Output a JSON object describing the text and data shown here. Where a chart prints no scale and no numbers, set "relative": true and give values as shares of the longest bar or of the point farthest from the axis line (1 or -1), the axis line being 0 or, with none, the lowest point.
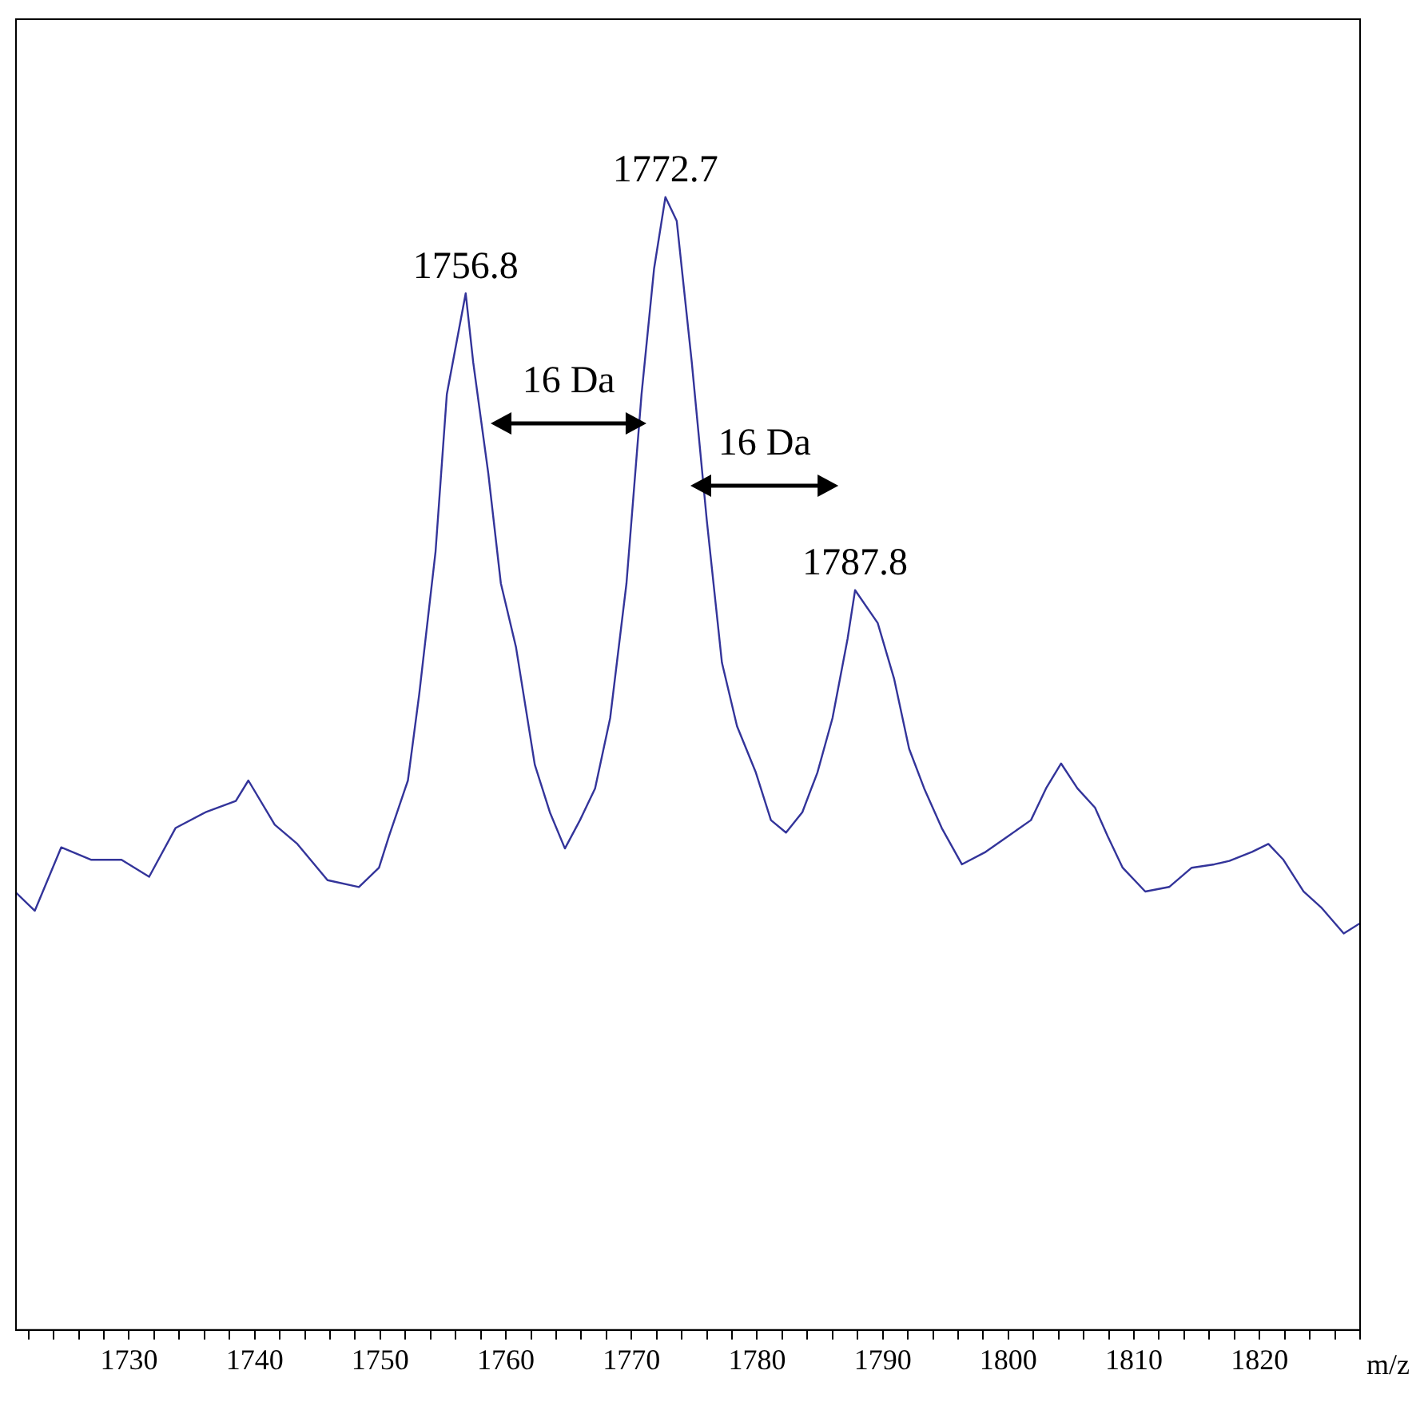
{
  "chart_data": {
    "type": "line",
    "relative": true,
    "xlabel": "m/z",
    "color": "#33349a",
    "legend": false,
    "grid": false,
    "marker": "none",
    "line_style": "solid",
    "xlim": [
      1721,
      1828
    ],
    "xticks": [
      {
        "value": 1722,
        "label": null
      },
      {
        "value": 1724,
        "label": null
      },
      {
        "value": 1726,
        "label": null
      },
      {
        "value": 1728,
        "label": null
      },
      1730,
      {
        "value": 1732,
        "label": null
      },
      {
        "value": 1734,
        "label": null
      },
      {
        "value": 1736,
        "label": null
      },
      {
        "value": 1738,
        "label": null
      },
      1740,
      {
        "value": 1742,
        "label": null
      },
      {
        "value": 1744,
        "label": null
      },
      {
        "value": 1746,
        "label": null
      },
      {
        "value": 1748,
        "label": null
      },
      1750,
      {
        "value": 1752,
        "label": null
      },
      {
        "value": 1754,
        "label": null
      },
      {
        "value": 1756,
        "label": null
      },
      {
        "value": 1758,
        "label": null
      },
      1760,
      {
        "value": 1762,
        "label": null
      },
      {
        "value": 1764,
        "label": null
      },
      {
        "value": 1766,
        "label": null
      },
      {
        "value": 1768,
        "label": null
      },
      1770,
      {
        "value": 1772,
        "label": null
      },
      {
        "value": 1774,
        "label": null
      },
      {
        "value": 1776,
        "label": null
      },
      {
        "value": 1778,
        "label": null
      },
      1780,
      {
        "value": 1782,
        "label": null
      },
      {
        "value": 1784,
        "label": null
      },
      {
        "value": 1786,
        "label": null
      },
      {
        "value": 1788,
        "label": null
      },
      1790,
      {
        "value": 1792,
        "label": null
      },
      {
        "value": 1794,
        "label": null
      },
      {
        "value": 1796,
        "label": null
      },
      {
        "value": 1798,
        "label": null
      },
      1800,
      {
        "value": 1802,
        "label": null
      },
      {
        "value": 1804,
        "label": null
      },
      {
        "value": 1806,
        "label": null
      },
      {
        "value": 1808,
        "label": null
      },
      1810,
      {
        "value": 1812,
        "label": null
      },
      {
        "value": 1814,
        "label": null
      },
      {
        "value": 1816,
        "label": null
      },
      {
        "value": 1818,
        "label": null
      },
      1820,
      {
        "value": 1822,
        "label": null
      },
      {
        "value": 1824,
        "label": null
      },
      {
        "value": 1826,
        "label": null
      },
      {
        "value": 1828,
        "label": null
      }
    ],
    "x": [
      1721.0,
      1722.5,
      1724.6,
      1727.0,
      1729.4,
      1731.6,
      1733.7,
      1736.1,
      1738.5,
      1739.5,
      1741.6,
      1743.4,
      1745.8,
      1748.3,
      1749.9,
      1750.7,
      1752.2,
      1753.1,
      1754.4,
      1755.3,
      1756.8,
      1757.4,
      1758.6,
      1759.6,
      1760.8,
      1762.3,
      1763.5,
      1764.7,
      1765.9,
      1767.1,
      1768.3,
      1769.6,
      1770.8,
      1771.8,
      1772.7,
      1773.6,
      1774.8,
      1776.0,
      1777.2,
      1778.4,
      1779.9,
      1781.1,
      1782.3,
      1783.6,
      1784.8,
      1786.0,
      1787.2,
      1787.8,
      1789.6,
      1790.9,
      1792.1,
      1793.3,
      1794.7,
      1796.3,
      1798.2,
      1800.0,
      1801.8,
      1803.0,
      1804.2,
      1805.5,
      1806.9,
      1807.9,
      1809.1,
      1810.9,
      1812.8,
      1814.6,
      1816.4,
      1817.6,
      1819.4,
      1820.7,
      1821.9,
      1823.5,
      1824.9,
      1826.7,
      1828.0
    ],
    "values": [
      0.386,
      0.37,
      0.426,
      0.415,
      0.415,
      0.4,
      0.443,
      0.457,
      0.467,
      0.485,
      0.446,
      0.429,
      0.397,
      0.391,
      0.408,
      0.436,
      0.485,
      0.561,
      0.687,
      0.826,
      0.915,
      0.854,
      0.756,
      0.659,
      0.603,
      0.499,
      0.457,
      0.425,
      0.45,
      0.478,
      0.54,
      0.659,
      0.826,
      0.937,
      1.0,
      0.979,
      0.854,
      0.714,
      0.589,
      0.533,
      0.492,
      0.45,
      0.439,
      0.457,
      0.492,
      0.54,
      0.61,
      0.653,
      0.624,
      0.575,
      0.513,
      0.478,
      0.443,
      0.411,
      0.422,
      0.436,
      0.45,
      0.478,
      0.5,
      0.478,
      0.461,
      0.436,
      0.408,
      0.387,
      0.391,
      0.408,
      0.411,
      0.414,
      0.422,
      0.429,
      0.415,
      0.387,
      0.373,
      0.35,
      0.359
    ],
    "annotations": [
      {
        "text": "1756.8",
        "x": 1756.8,
        "y": 0.915
      },
      {
        "text": "1772.7",
        "x": 1772.7,
        "y": 1.0
      },
      {
        "text": "1787.8",
        "x": 1787.8,
        "y": 0.653
      },
      "16 Da",
      "16 Da"
    ]
  }
}
